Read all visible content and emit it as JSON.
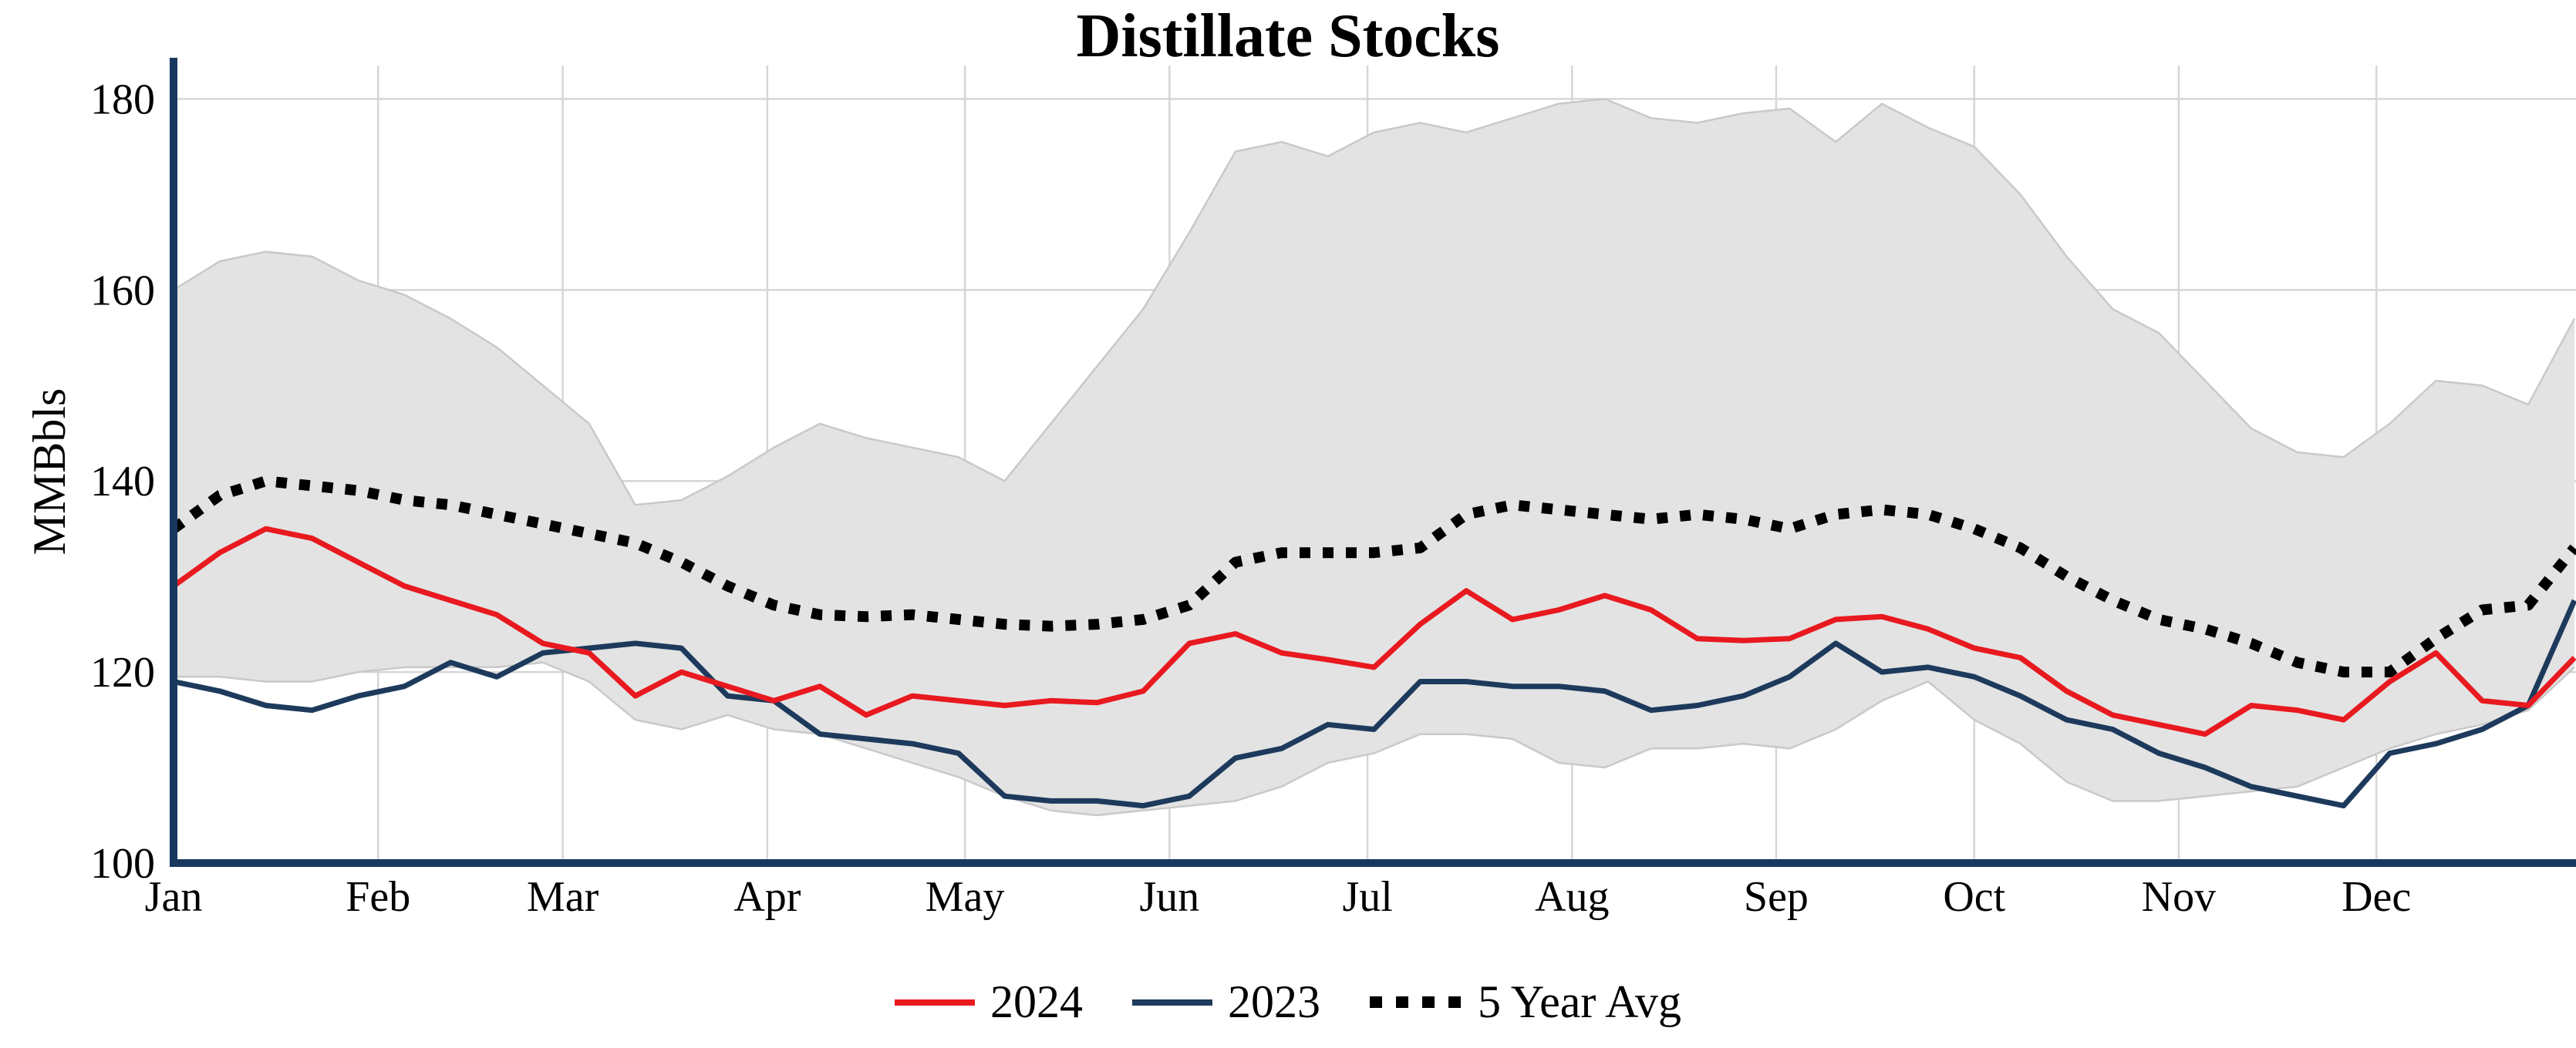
{
  "page": {
    "background": "#ffffff"
  },
  "chart_data": {
    "type": "line",
    "title": "Distillate Stocks",
    "ylabel": "MMBbls",
    "xlabel": "",
    "yticks": [
      100,
      120,
      140,
      160,
      180
    ],
    "ylim": [
      100,
      183.5
    ],
    "grid": true,
    "grid_color": "#d6d6d6",
    "axis_color": "#17375e",
    "x_unit": "week-of-year",
    "n_points": 53,
    "month_labels": [
      "Jan",
      "Feb",
      "Mar",
      "Apr",
      "May",
      "Jun",
      "Jul",
      "Aug",
      "Sep",
      "Oct",
      "Nov",
      "Dec"
    ],
    "month_start_weeks": [
      0,
      4.43,
      8.43,
      12.86,
      17.14,
      21.57,
      25.86,
      30.29,
      34.71,
      39.0,
      43.43,
      47.71
    ],
    "band": {
      "name": "5 Year Range",
      "color": "#e3e3e3",
      "edge_color": "#c9c9c9",
      "upper": [
        160,
        163,
        164,
        163.5,
        161,
        159.5,
        157,
        154,
        150,
        146,
        137.5,
        138,
        140.5,
        143.5,
        146,
        144.5,
        143.5,
        142.5,
        140,
        146,
        152,
        158,
        166,
        174.5,
        175.5,
        174,
        176.5,
        177.5,
        176.5,
        178,
        179.5,
        180,
        178,
        177.5,
        178.5,
        179,
        175.5,
        179.5,
        177,
        175,
        170,
        163.5,
        158,
        155.5,
        150.5,
        145.5,
        143,
        142.5,
        146,
        150.5,
        150,
        148,
        157
      ],
      "lower": [
        119.5,
        119.5,
        119,
        119,
        120,
        120.5,
        120.5,
        120.5,
        121,
        119,
        115,
        114,
        115.5,
        114,
        113.5,
        112,
        110.5,
        109,
        107,
        105.5,
        105,
        105.5,
        106,
        106.5,
        108,
        110.5,
        111.5,
        113.5,
        113.5,
        113,
        110.5,
        110,
        112,
        112,
        112.5,
        112,
        114,
        117,
        119,
        115,
        112.5,
        108.5,
        106.5,
        106.5,
        107,
        107.5,
        108,
        110,
        112,
        113.5,
        114.5,
        116,
        120.5
      ]
    },
    "series": [
      {
        "name": "2024",
        "color": "#e8191f",
        "style": "solid",
        "values": [
          129,
          132.5,
          135,
          134,
          131.5,
          129,
          127.5,
          126,
          123,
          122,
          117.5,
          120,
          118.5,
          117,
          118.5,
          115.5,
          117.5,
          117,
          116.5,
          117,
          116.8,
          118,
          123,
          124,
          122,
          121.3,
          120.5,
          125,
          128.5,
          125.5,
          126.5,
          128,
          126.5,
          123.5,
          123.3,
          123.5,
          125.5,
          125.8,
          124.5,
          122.5,
          121.5,
          118,
          115.5,
          114.5,
          113.5,
          116.5,
          116,
          115,
          119,
          122,
          117,
          116.5,
          121.5
        ]
      },
      {
        "name": "2023",
        "color": "#1d3a5c",
        "style": "solid",
        "values": [
          119,
          118,
          116.5,
          116,
          117.5,
          118.5,
          121,
          119.5,
          122,
          122.5,
          123,
          122.5,
          117.5,
          117,
          113.5,
          113,
          112.5,
          111.5,
          107,
          106.5,
          106.5,
          106,
          107,
          111,
          112,
          114.5,
          114,
          119,
          119,
          118.5,
          118.5,
          118,
          116,
          116.5,
          117.5,
          119.5,
          123,
          120,
          120.5,
          119.5,
          117.5,
          115,
          114,
          111.5,
          110,
          108,
          107,
          106,
          111.5,
          112.5,
          114,
          116.5,
          127.5
        ]
      },
      {
        "name": "5 Year Avg",
        "color": "#000000",
        "style": "dotted",
        "values": [
          135,
          138.5,
          140,
          139.5,
          139,
          138,
          137.5,
          136.5,
          135.5,
          134.5,
          133.5,
          131.5,
          129,
          127,
          126,
          125.8,
          126,
          125.5,
          125,
          124.8,
          125,
          125.5,
          127,
          131.5,
          132.5,
          132.5,
          132.5,
          133,
          136.5,
          137.5,
          137,
          136.5,
          136,
          136.5,
          136,
          135,
          136.5,
          137,
          136.5,
          135,
          133,
          130,
          127.5,
          125.5,
          124.5,
          123,
          121,
          120,
          120,
          123.5,
          126.5,
          127,
          133
        ]
      }
    ],
    "legend": {
      "position": "bottom",
      "items": [
        "2024",
        "2023",
        "5 Year Avg"
      ]
    }
  }
}
